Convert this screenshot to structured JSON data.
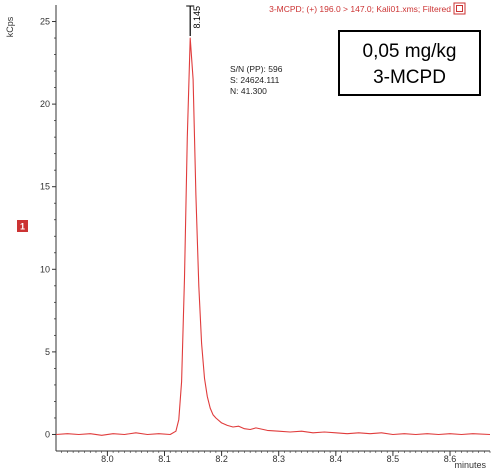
{
  "header": {
    "trace_label": "3-MCPD;  (+) 196.0 > 147.0;  Kali01.xms;  Filtered",
    "icon": "export-icon"
  },
  "marker": {
    "label": "1",
    "color": "#cc3333"
  },
  "inset": {
    "line1": "0,05 mg/kg",
    "line2": "3-MCPD"
  },
  "peak_info": {
    "sn": "S/N (PP): 596",
    "s": "S: 24624.111",
    "n": "N: 41.300"
  },
  "chart_data": {
    "type": "line",
    "title": "",
    "xlabel": "minutes",
    "ylabel": "kCps",
    "xlim": [
      7.91,
      8.67
    ],
    "ylim": [
      -1.0,
      26.0
    ],
    "x_ticks": [
      8.0,
      8.1,
      8.2,
      8.3,
      8.4,
      8.5,
      8.6
    ],
    "y_ticks": [
      0,
      5,
      10,
      15,
      20,
      25
    ],
    "x_tick_labels": [
      "8.0",
      "8.1",
      "8.2",
      "8.3",
      "8.4",
      "8.5",
      "8.6"
    ],
    "y_tick_labels": [
      "0",
      "5",
      "10",
      "15",
      "20",
      "25"
    ],
    "peak_label": {
      "x": 8.145,
      "text": "8.145"
    },
    "grid": false,
    "series": [
      {
        "color": "#e03c3c",
        "x": [
          7.91,
          7.93,
          7.95,
          7.97,
          7.99,
          8.01,
          8.03,
          8.05,
          8.07,
          8.09,
          8.11,
          8.12,
          8.125,
          8.13,
          8.135,
          8.14,
          8.145,
          8.15,
          8.155,
          8.16,
          8.165,
          8.17,
          8.175,
          8.18,
          8.185,
          8.19,
          8.2,
          8.21,
          8.22,
          8.23,
          8.24,
          8.25,
          8.26,
          8.28,
          8.3,
          8.32,
          8.34,
          8.36,
          8.38,
          8.4,
          8.42,
          8.44,
          8.46,
          8.48,
          8.5,
          8.52,
          8.54,
          8.56,
          8.58,
          8.6,
          8.62,
          8.64,
          8.67
        ],
        "y": [
          0.0,
          0.05,
          0.0,
          0.05,
          -0.05,
          0.05,
          0.0,
          0.1,
          0.0,
          0.05,
          0.0,
          0.2,
          0.9,
          3.2,
          9.5,
          18.0,
          24.0,
          21.5,
          14.5,
          9.0,
          5.5,
          3.4,
          2.3,
          1.6,
          1.2,
          1.0,
          0.7,
          0.55,
          0.45,
          0.5,
          0.35,
          0.3,
          0.4,
          0.25,
          0.2,
          0.15,
          0.2,
          0.1,
          0.15,
          0.1,
          0.05,
          0.1,
          0.05,
          0.1,
          0.0,
          0.05,
          0.0,
          0.05,
          0.0,
          0.05,
          0.0,
          0.05,
          0.0
        ]
      }
    ]
  }
}
